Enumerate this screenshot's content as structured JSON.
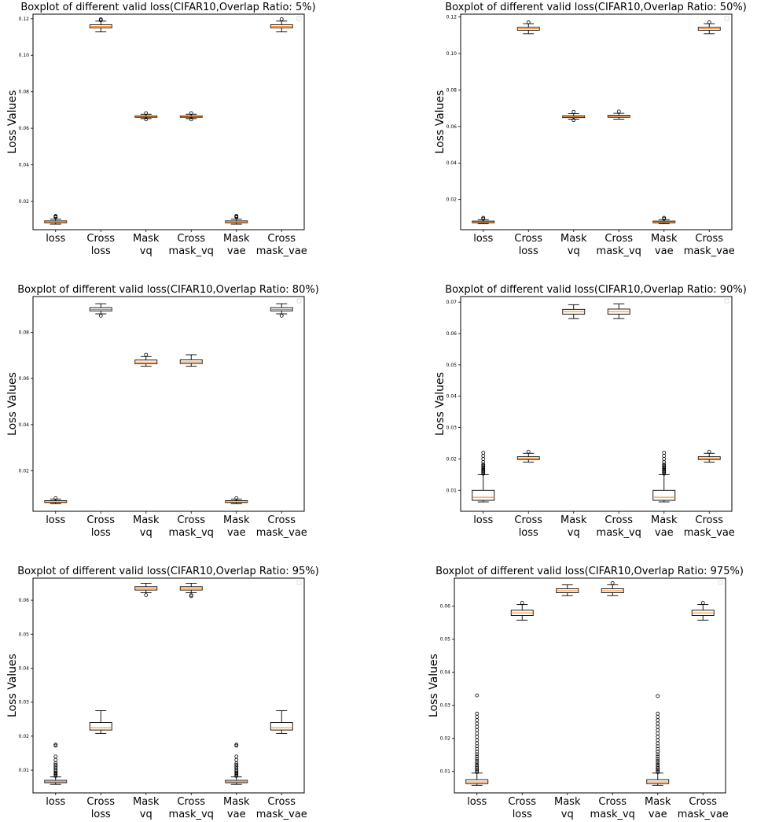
{
  "figure": {
    "ylabel": "Loss Values"
  },
  "chart_data": [
    {
      "type": "boxplot",
      "title": "Boxplot of different valid loss(CIFAR10,Overlap Ratio: 5%)",
      "ylabel": "Loss Values",
      "categories": [
        "loss",
        "Cross\nloss",
        "Mask\nvq",
        "Cross\nmask_vq",
        "Mask\nvae",
        "Cross\nmask_vae"
      ],
      "ylim": [
        0.0045,
        0.1225
      ],
      "yticks": [
        "0.02",
        "0.04",
        "0.06",
        "0.08",
        "0.10",
        "0.12"
      ],
      "boxes": [
        {
          "whislo": 0.0075,
          "q1": 0.0083,
          "med": 0.0087,
          "q3": 0.0093,
          "whishi": 0.0103,
          "fliers": [
            0.0113,
            0.0117,
            0.012
          ]
        },
        {
          "whislo": 0.1128,
          "q1": 0.115,
          "med": 0.1158,
          "q3": 0.1167,
          "whishi": 0.1187,
          "fliers": [
            0.1192,
            0.1197
          ]
        },
        {
          "whislo": 0.0653,
          "q1": 0.066,
          "med": 0.0664,
          "q3": 0.0668,
          "whishi": 0.0677,
          "fliers": [
            0.0649,
            0.0683
          ]
        },
        {
          "whislo": 0.0653,
          "q1": 0.066,
          "med": 0.0664,
          "q3": 0.0668,
          "whishi": 0.0677,
          "fliers": [
            0.0649,
            0.0683
          ]
        },
        {
          "whislo": 0.0075,
          "q1": 0.0083,
          "med": 0.0087,
          "q3": 0.0093,
          "whishi": 0.0103,
          "fliers": [
            0.0113,
            0.0117,
            0.012
          ]
        },
        {
          "whislo": 0.1128,
          "q1": 0.115,
          "med": 0.1158,
          "q3": 0.1167,
          "whishi": 0.1187,
          "fliers": [
            0.1197
          ]
        }
      ]
    },
    {
      "type": "boxplot",
      "title": "Boxplot of different valid loss(CIFAR10,Overlap Ratio: 50%)",
      "ylabel": "Loss Values",
      "categories": [
        "loss",
        "Cross\nloss",
        "Mask\nvq",
        "Cross\nmask_vq",
        "Mask\nvae",
        "Cross\nmask_vae"
      ],
      "ylim": [
        0.0035,
        0.1215
      ],
      "yticks": [
        "0.02",
        "0.04",
        "0.06",
        "0.08",
        "0.10",
        "0.12"
      ],
      "boxes": [
        {
          "whislo": 0.0068,
          "q1": 0.0073,
          "med": 0.0077,
          "q3": 0.0082,
          "whishi": 0.009,
          "fliers": [
            0.0095,
            0.01
          ]
        },
        {
          "whislo": 0.1108,
          "q1": 0.1127,
          "med": 0.1135,
          "q3": 0.1143,
          "whishi": 0.1163,
          "fliers": [
            0.117
          ]
        },
        {
          "whislo": 0.064,
          "q1": 0.0648,
          "med": 0.0653,
          "q3": 0.0659,
          "whishi": 0.067,
          "fliers": [
            0.0635,
            0.068
          ]
        },
        {
          "whislo": 0.064,
          "q1": 0.065,
          "med": 0.0655,
          "q3": 0.0661,
          "whishi": 0.0672,
          "fliers": [
            0.0682
          ]
        },
        {
          "whislo": 0.0068,
          "q1": 0.0073,
          "med": 0.0077,
          "q3": 0.0082,
          "whishi": 0.009,
          "fliers": [
            0.0095,
            0.01
          ]
        },
        {
          "whislo": 0.1108,
          "q1": 0.1127,
          "med": 0.1135,
          "q3": 0.1143,
          "whishi": 0.1163,
          "fliers": [
            0.117
          ]
        }
      ]
    },
    {
      "type": "boxplot",
      "title": "Boxplot of different valid loss(CIFAR10,Overlap Ratio: 80%)",
      "ylabel": "Loss Values",
      "categories": [
        "loss",
        "Cross\nloss",
        "Mask\nvq",
        "Cross\nmask_vq",
        "Mask\nvae",
        "Cross\nmask_vae"
      ],
      "ylim": [
        0.0025,
        0.0955
      ],
      "yticks": [
        "0.02",
        "0.04",
        "0.06",
        "0.08"
      ],
      "boxes": [
        {
          "whislo": 0.0058,
          "q1": 0.0063,
          "med": 0.0066,
          "q3": 0.0071,
          "whishi": 0.0078,
          "fliers": [
            0.0082
          ]
        },
        {
          "whislo": 0.088,
          "q1": 0.0893,
          "med": 0.0899,
          "q3": 0.0907,
          "whishi": 0.0924,
          "fliers": [
            0.0872
          ]
        },
        {
          "whislo": 0.0653,
          "q1": 0.0664,
          "med": 0.0671,
          "q3": 0.068,
          "whishi": 0.0695,
          "fliers": [
            0.0703
          ]
        },
        {
          "whislo": 0.0653,
          "q1": 0.0665,
          "med": 0.0672,
          "q3": 0.0681,
          "whishi": 0.0703,
          "fliers": []
        },
        {
          "whislo": 0.0058,
          "q1": 0.0063,
          "med": 0.0066,
          "q3": 0.0071,
          "whishi": 0.0078,
          "fliers": [
            0.0082
          ]
        },
        {
          "whislo": 0.088,
          "q1": 0.0893,
          "med": 0.0899,
          "q3": 0.0907,
          "whishi": 0.0924,
          "fliers": [
            0.0872
          ]
        }
      ]
    },
    {
      "type": "boxplot",
      "title": "Boxplot of different valid loss(CIFAR10,Overlap Ratio: 90%)",
      "ylabel": "Loss Values",
      "categories": [
        "loss",
        "Cross\nloss",
        "Mask\nvq",
        "Cross\nmask_vq",
        "Mask\nvae",
        "Cross\nmask_vae"
      ],
      "ylim": [
        0.0033,
        0.0718
      ],
      "yticks": [
        "0.01",
        "0.02",
        "0.03",
        "0.04",
        "0.05",
        "0.06",
        "0.07"
      ],
      "boxes": [
        {
          "whislo": 0.0063,
          "q1": 0.0068,
          "med": 0.0078,
          "q3": 0.01,
          "whishi": 0.015,
          "fliers": [
            0.0153,
            0.0157,
            0.016,
            0.0163,
            0.0166,
            0.017,
            0.0174,
            0.0178,
            0.0182,
            0.019,
            0.02,
            0.021,
            0.022
          ]
        },
        {
          "whislo": 0.019,
          "q1": 0.0198,
          "med": 0.0202,
          "q3": 0.0207,
          "whishi": 0.0218,
          "fliers": [
            0.0223
          ]
        },
        {
          "whislo": 0.0648,
          "q1": 0.0662,
          "med": 0.067,
          "q3": 0.0677,
          "whishi": 0.0692,
          "fliers": []
        },
        {
          "whislo": 0.0648,
          "q1": 0.0662,
          "med": 0.067,
          "q3": 0.0678,
          "whishi": 0.0695,
          "fliers": []
        },
        {
          "whislo": 0.0063,
          "q1": 0.0068,
          "med": 0.0078,
          "q3": 0.01,
          "whishi": 0.015,
          "fliers": [
            0.0153,
            0.0157,
            0.016,
            0.0163,
            0.0166,
            0.017,
            0.0174,
            0.0178,
            0.0182,
            0.019,
            0.02,
            0.021,
            0.022
          ]
        },
        {
          "whislo": 0.019,
          "q1": 0.0198,
          "med": 0.0202,
          "q3": 0.0207,
          "whishi": 0.0218,
          "fliers": [
            0.0223
          ]
        }
      ]
    },
    {
      "type": "boxplot",
      "title": "Boxplot of different valid loss(CIFAR10,Overlap Ratio: 95%)",
      "ylabel": "Loss Values",
      "categories": [
        "loss",
        "Cross\nloss",
        "Mask\nvq",
        "Cross\nmask_vq",
        "Mask\nvae",
        "Cross\nmask_vae"
      ],
      "ylim": [
        0.0033,
        0.0665
      ],
      "yticks": [
        "0.01",
        "0.02",
        "0.03",
        "0.04",
        "0.05",
        "0.06"
      ],
      "boxes": [
        {
          "whislo": 0.0058,
          "q1": 0.0063,
          "med": 0.0066,
          "q3": 0.007,
          "whishi": 0.008,
          "fliers": [
            0.0083,
            0.0086,
            0.0089,
            0.0092,
            0.0096,
            0.01,
            0.0105,
            0.011,
            0.0115,
            0.012,
            0.013,
            0.014,
            0.0172,
            0.0175
          ]
        },
        {
          "whislo": 0.0208,
          "q1": 0.0218,
          "med": 0.0225,
          "q3": 0.024,
          "whishi": 0.0275,
          "fliers": []
        },
        {
          "whislo": 0.0622,
          "q1": 0.063,
          "med": 0.0635,
          "q3": 0.064,
          "whishi": 0.065,
          "fliers": [
            0.0615
          ]
        },
        {
          "whislo": 0.0622,
          "q1": 0.063,
          "med": 0.0635,
          "q3": 0.064,
          "whishi": 0.065,
          "fliers": [
            0.0615,
            0.0612
          ]
        },
        {
          "whislo": 0.0058,
          "q1": 0.0063,
          "med": 0.0066,
          "q3": 0.007,
          "whishi": 0.008,
          "fliers": [
            0.0083,
            0.0086,
            0.0089,
            0.0092,
            0.0096,
            0.01,
            0.0105,
            0.011,
            0.0115,
            0.012,
            0.013,
            0.014,
            0.0172,
            0.0175
          ]
        },
        {
          "whislo": 0.0208,
          "q1": 0.0218,
          "med": 0.0225,
          "q3": 0.024,
          "whishi": 0.0275,
          "fliers": []
        }
      ]
    },
    {
      "type": "boxplot",
      "title": "Boxplot of different valid loss(CIFAR10,Overlap Ratio: 975%)",
      "ylabel": "Loss Values",
      "categories": [
        "loss",
        "Cross\nloss",
        "Mask\nvq",
        "Cross\nmask_vq",
        "Mask\nvae",
        "Cross\nmask_vae"
      ],
      "ylim": [
        0.0035,
        0.0685
      ],
      "yticks": [
        "0.01",
        "0.02",
        "0.03",
        "0.04",
        "0.05",
        "0.06"
      ],
      "boxes": [
        {
          "whislo": 0.0058,
          "q1": 0.0063,
          "med": 0.0068,
          "q3": 0.0075,
          "whishi": 0.0095,
          "fliers": [
            0.0098,
            0.0102,
            0.0106,
            0.011,
            0.0115,
            0.012,
            0.0126,
            0.0132,
            0.0138,
            0.0145,
            0.0152,
            0.016,
            0.0168,
            0.0176,
            0.0185,
            0.0195,
            0.0205,
            0.0215,
            0.0225,
            0.0235,
            0.0245,
            0.0255,
            0.0265,
            0.0275,
            0.033
          ]
        },
        {
          "whislo": 0.0558,
          "q1": 0.0572,
          "med": 0.058,
          "q3": 0.0588,
          "whishi": 0.0605,
          "fliers": [
            0.061
          ]
        },
        {
          "whislo": 0.0632,
          "q1": 0.0641,
          "med": 0.0647,
          "q3": 0.0653,
          "whishi": 0.0665,
          "fliers": []
        },
        {
          "whislo": 0.0632,
          "q1": 0.0641,
          "med": 0.0647,
          "q3": 0.0653,
          "whishi": 0.0665,
          "fliers": [
            0.067
          ]
        },
        {
          "whislo": 0.0058,
          "q1": 0.0063,
          "med": 0.0068,
          "q3": 0.0075,
          "whishi": 0.0095,
          "fliers": [
            0.0098,
            0.0102,
            0.0106,
            0.011,
            0.0115,
            0.012,
            0.0126,
            0.0132,
            0.0138,
            0.0145,
            0.0152,
            0.016,
            0.0168,
            0.0176,
            0.0185,
            0.0195,
            0.0205,
            0.0215,
            0.0225,
            0.0235,
            0.0245,
            0.0255,
            0.0265,
            0.0275,
            0.0328
          ]
        },
        {
          "whislo": 0.0558,
          "q1": 0.0572,
          "med": 0.058,
          "q3": 0.0588,
          "whishi": 0.0605,
          "fliers": [
            0.061
          ]
        }
      ]
    }
  ]
}
